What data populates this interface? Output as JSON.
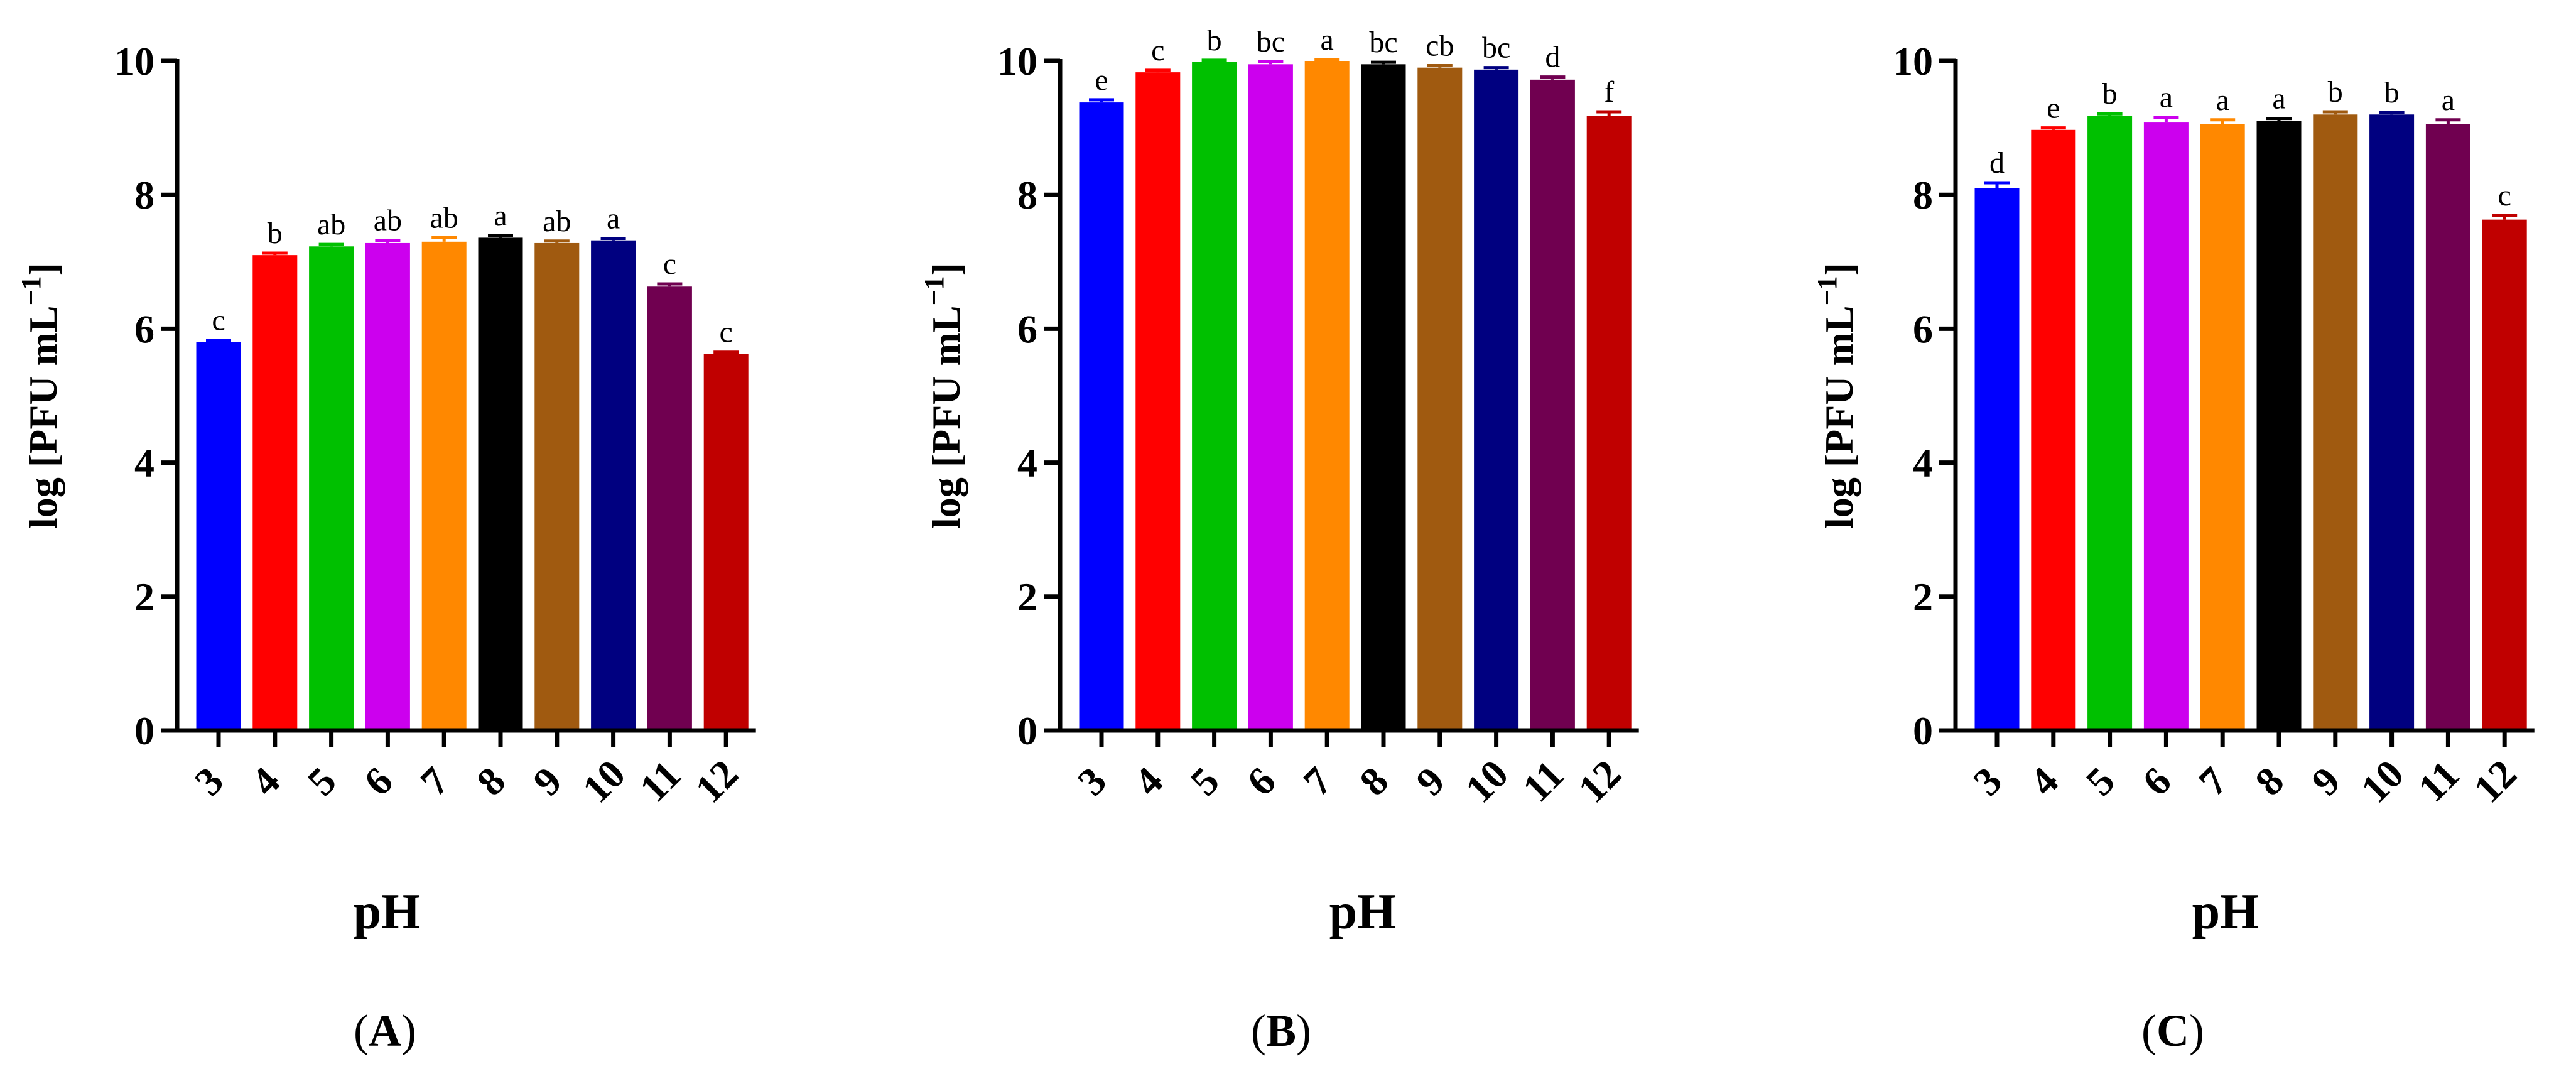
{
  "chart_data": [
    {
      "type": "bar",
      "panel_label": "A",
      "categories": [
        "3",
        "4",
        "5",
        "6",
        "7",
        "8",
        "9",
        "10",
        "11",
        "12"
      ],
      "values": [
        5.8,
        7.1,
        7.23,
        7.28,
        7.3,
        7.36,
        7.28,
        7.32,
        6.63,
        5.62
      ],
      "errors": [
        0.03,
        0.03,
        0.03,
        0.04,
        0.06,
        0.03,
        0.03,
        0.03,
        0.04,
        0.03
      ],
      "significance": [
        "c",
        "b",
        "ab",
        "ab",
        "ab",
        "a",
        "ab",
        "a",
        "c",
        "c"
      ],
      "xlabel": "pH",
      "ylabel_main": "log [PFU mL",
      "ylabel_sup": "−1",
      "ylabel_end": "]",
      "ylim": [
        0,
        10
      ],
      "yticks": [
        "0",
        "2",
        "4",
        "6",
        "8",
        "10"
      ],
      "colors": [
        "#0000ff",
        "#ff0000",
        "#00c000",
        "#cc00ee",
        "#ff8800",
        "#000000",
        "#a05a10",
        "#000080",
        "#700050",
        "#c00000"
      ]
    },
    {
      "type": "bar",
      "panel_label": "B",
      "categories": [
        "3",
        "4",
        "5",
        "6",
        "7",
        "8",
        "9",
        "10",
        "11",
        "12"
      ],
      "values": [
        9.38,
        9.83,
        9.99,
        9.95,
        10.0,
        9.95,
        9.9,
        9.87,
        9.72,
        9.18
      ],
      "errors": [
        0.04,
        0.03,
        0.02,
        0.04,
        0.02,
        0.03,
        0.03,
        0.03,
        0.04,
        0.06
      ],
      "significance": [
        "e",
        "c",
        "b",
        "bc",
        "a",
        "bc",
        "cb",
        "bc",
        "d",
        "f"
      ],
      "xlabel": "pH",
      "ylabel_main": "log [PFU mL",
      "ylabel_sup": "−1",
      "ylabel_end": "]",
      "ylim": [
        0,
        10
      ],
      "yticks": [
        "0",
        "2",
        "4",
        "6",
        "8",
        "10"
      ],
      "colors": [
        "#0000ff",
        "#ff0000",
        "#00c000",
        "#cc00ee",
        "#ff8800",
        "#000000",
        "#a05a10",
        "#000080",
        "#700050",
        "#c00000"
      ]
    },
    {
      "type": "bar",
      "panel_label": "C",
      "categories": [
        "3",
        "4",
        "5",
        "6",
        "7",
        "8",
        "9",
        "10",
        "11",
        "12"
      ],
      "values": [
        8.1,
        8.97,
        9.18,
        9.08,
        9.06,
        9.1,
        9.2,
        9.2,
        9.06,
        7.63
      ],
      "errors": [
        0.08,
        0.03,
        0.03,
        0.08,
        0.06,
        0.04,
        0.04,
        0.03,
        0.06,
        0.06
      ],
      "significance": [
        "d",
        "e",
        "b",
        "a",
        "a",
        "a",
        "b",
        "b",
        "a",
        "c"
      ],
      "xlabel": "pH",
      "ylabel_main": "log [PFU mL",
      "ylabel_sup": "−1",
      "ylabel_end": "]",
      "ylim": [
        0,
        10
      ],
      "yticks": [
        "0",
        "2",
        "4",
        "6",
        "8",
        "10"
      ],
      "colors": [
        "#0000ff",
        "#ff0000",
        "#00c000",
        "#cc00ee",
        "#ff8800",
        "#000000",
        "#a05a10",
        "#000080",
        "#700050",
        "#c00000"
      ]
    }
  ]
}
